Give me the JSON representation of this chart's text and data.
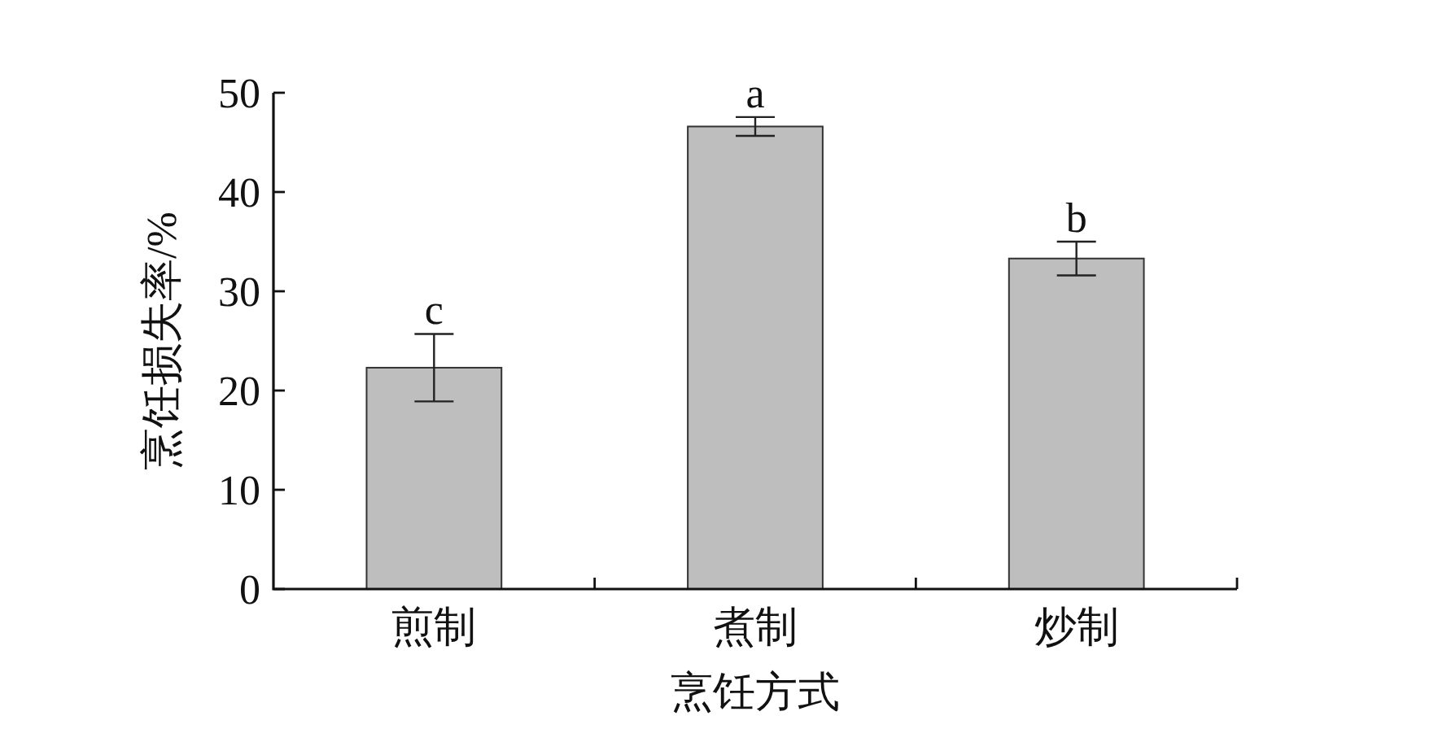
{
  "chart_data": {
    "type": "bar",
    "xlabel": "烹饪方式",
    "ylabel": "烹饪损失率/%",
    "categories": [
      "煎制",
      "煮制",
      "炒制"
    ],
    "values": [
      22.3,
      46.6,
      33.3
    ],
    "errors": [
      3.4,
      0.95,
      1.7
    ],
    "color": "#bebebf",
    "ylim": [
      0,
      50
    ],
    "yticks": [
      0,
      10,
      20,
      30,
      40,
      50
    ],
    "annotations": [
      {
        "text": "c",
        "x": "煎制",
        "y": 25.7
      },
      {
        "text": "a",
        "x": "煮制",
        "y": 47.55
      },
      {
        "text": "b",
        "x": "炒制",
        "y": 35.0
      }
    ]
  }
}
